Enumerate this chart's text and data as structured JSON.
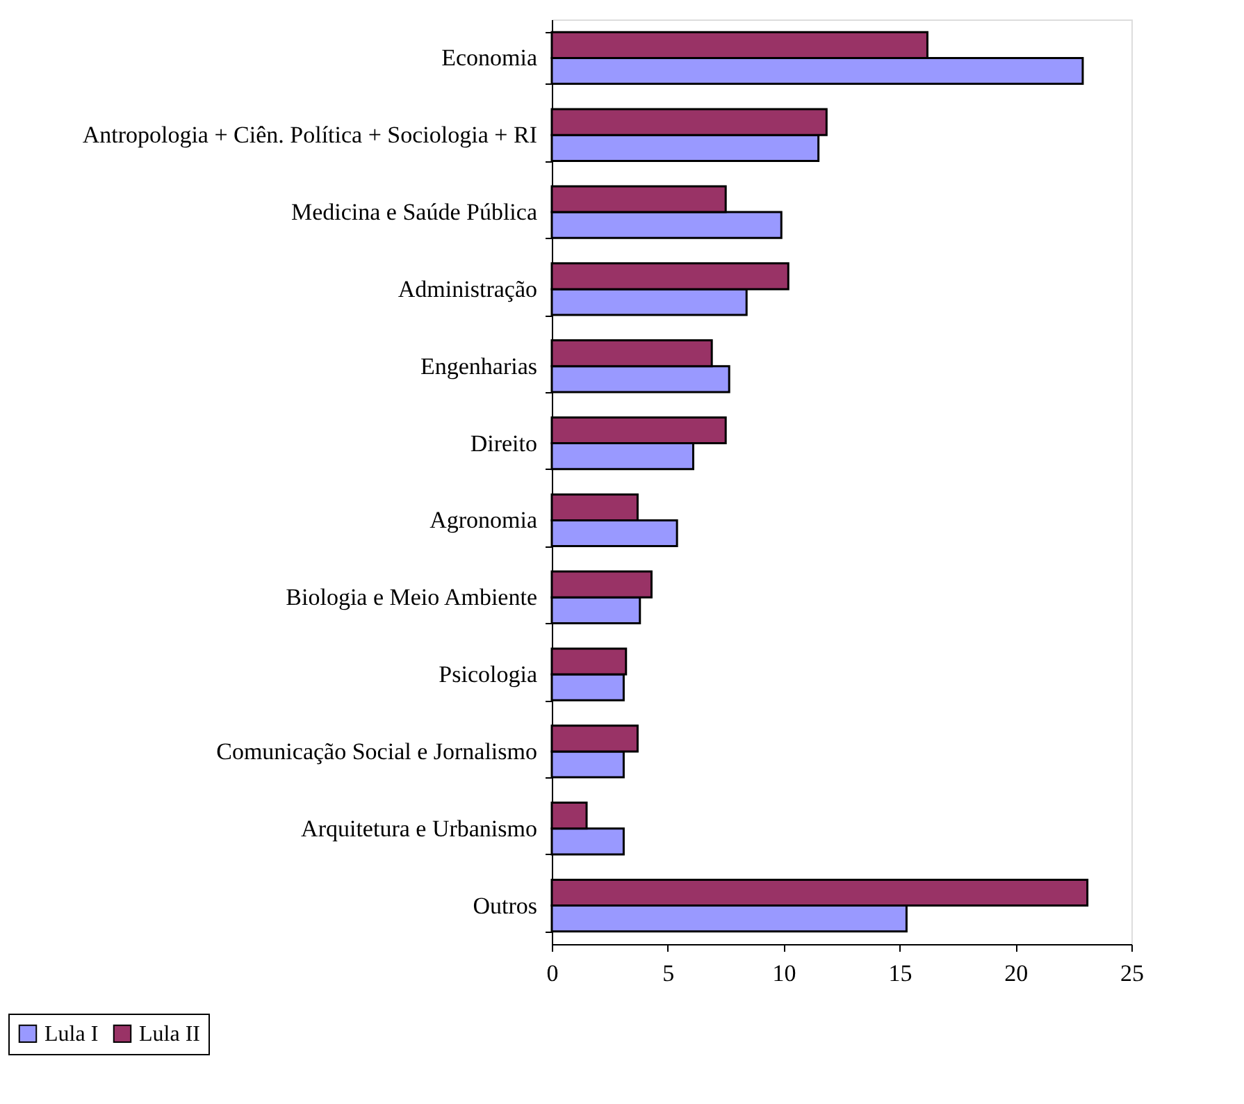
{
  "chart_data": {
    "type": "bar",
    "orientation": "horizontal",
    "categories": [
      "Economia",
      "Antropologia + Ciên. Política + Sociologia + RI",
      "Medicina e Saúde Pública",
      "Administração",
      "Engenharias",
      "Direito",
      "Agronomia",
      "Biologia e Meio Ambiente",
      "Psicologia",
      "Comunicação Social e Jornalismo",
      "Arquitetura e Urbanismo",
      "Outros"
    ],
    "series": [
      {
        "name": "Lula I",
        "color": "#9999ff",
        "values": [
          22.9,
          11.5,
          9.9,
          8.4,
          7.65,
          6.1,
          5.4,
          3.8,
          3.1,
          3.1,
          3.1,
          15.3
        ]
      },
      {
        "name": "Lula II",
        "color": "#993366",
        "values": [
          16.2,
          11.85,
          7.5,
          10.2,
          6.9,
          7.5,
          3.7,
          4.3,
          3.2,
          3.7,
          1.5,
          23.1
        ]
      }
    ],
    "xlim": [
      0,
      25
    ],
    "xticks": [
      0,
      5,
      10,
      15,
      20,
      25
    ],
    "grid": false,
    "legend": "bottom left"
  }
}
